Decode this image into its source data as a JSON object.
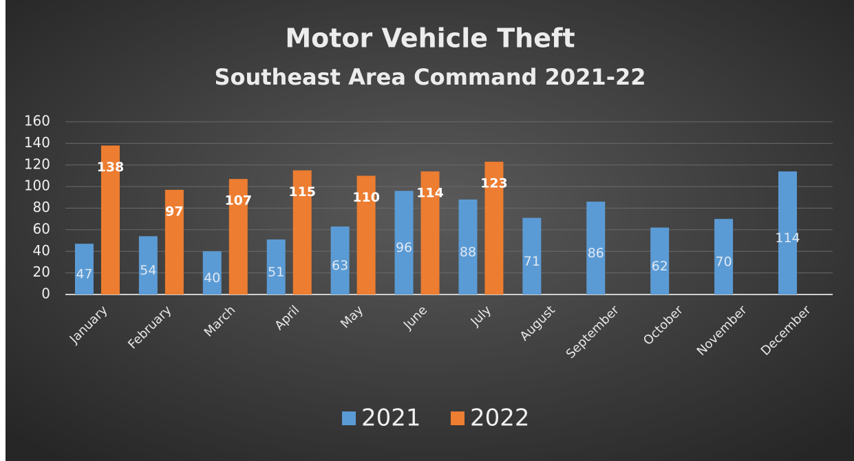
{
  "chart_data": {
    "type": "bar",
    "title": "Motor Vehicle Theft",
    "subtitle": "Southeast Area Command 2021-22",
    "categories": [
      "January",
      "February",
      "March",
      "April",
      "May",
      "June",
      "July",
      "August",
      "September",
      "October",
      "November",
      "December"
    ],
    "series": [
      {
        "name": "2021",
        "color": "#5b9bd5",
        "values": [
          47,
          54,
          40,
          51,
          63,
          96,
          88,
          71,
          86,
          62,
          70,
          114
        ]
      },
      {
        "name": "2022",
        "color": "#ed7d31",
        "values": [
          138,
          97,
          107,
          115,
          110,
          114,
          123,
          null,
          null,
          null,
          null,
          null
        ]
      }
    ],
    "ylim": [
      0,
      160
    ],
    "yticks": [
      0,
      20,
      40,
      60,
      80,
      100,
      120,
      140,
      160
    ],
    "grid": true,
    "legend": "bottom"
  }
}
